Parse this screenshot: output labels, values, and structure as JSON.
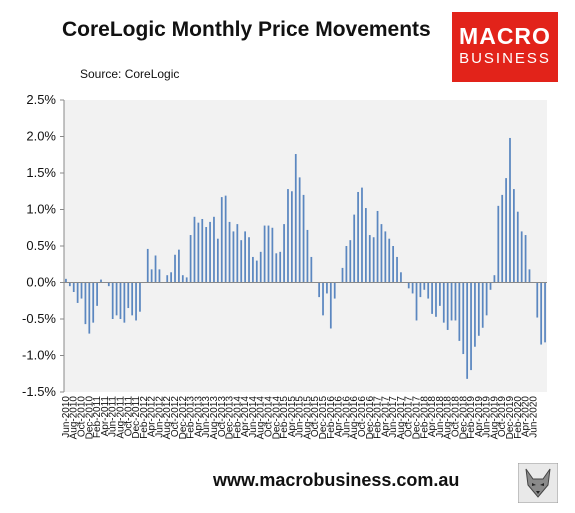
{
  "header": {
    "title": "CoreLogic Monthly Price Movements",
    "source": "Source: CoreLogic"
  },
  "logo": {
    "line1": "MACRO",
    "line2": "BUSINESS",
    "color": "#e2231a"
  },
  "footer": {
    "url": "www.macrobusiness.com.au"
  },
  "colors": {
    "bar": "#5b87c0",
    "plot_bg": "#f2f2f2"
  },
  "chart_data": {
    "type": "bar",
    "title": "CoreLogic Monthly Price Movements",
    "xlabel": "",
    "ylabel": "",
    "ylim": [
      -1.5,
      2.5
    ],
    "yticks": [
      "-1.5%",
      "-1.0%",
      "-0.5%",
      "0.0%",
      "0.5%",
      "1.0%",
      "1.5%",
      "2.0%",
      "2.5%"
    ],
    "ytick_values": [
      -1.5,
      -1.0,
      -0.5,
      0.0,
      0.5,
      1.0,
      1.5,
      2.0,
      2.5
    ],
    "grid": false,
    "xtick_labels": [
      "Jun-2010",
      "Aug-2010",
      "Oct-2010",
      "Dec-2010",
      "Feb-2011",
      "Apr-2011",
      "Jun-2011",
      "Aug-2011",
      "Oct-2011",
      "Dec-2011",
      "Feb-2012",
      "Apr-2012",
      "Jun-2012",
      "Aug-2012",
      "Oct-2012",
      "Dec-2012",
      "Feb-2013",
      "Apr-2013",
      "Jun-2013",
      "Aug-2013",
      "Oct-2013",
      "Dec-2013",
      "Feb-2014",
      "Apr-2014",
      "Jun-2014",
      "Aug-2014",
      "Oct-2014",
      "Dec-2014",
      "Feb-2015",
      "Apr-2015",
      "Jun-2015",
      "Aug-2015",
      "Oct-2015",
      "Dec-2015",
      "Feb-2016",
      "Apr-2016",
      "Jun-2016",
      "Aug-2016",
      "Oct-2016",
      "Dec-2016",
      "Feb-2017",
      "Apr-2017",
      "Jun-2017",
      "Aug-2017",
      "Oct-2017",
      "Dec-2017",
      "Feb-2018",
      "Apr-2018",
      "Jun-2018",
      "Aug-2018",
      "Oct-2018",
      "Dec-2018",
      "Feb-2019",
      "Apr-2019",
      "Jun-2019",
      "Aug-2019",
      "Oct-2019",
      "Dec-2019",
      "Feb-2020",
      "Apr-2020",
      "Jun-2020"
    ],
    "values": [
      0.05,
      -0.05,
      -0.13,
      -0.28,
      -0.22,
      -0.57,
      -0.7,
      -0.55,
      -0.32,
      0.04,
      0.0,
      -0.05,
      -0.5,
      -0.45,
      -0.5,
      -0.55,
      -0.35,
      -0.45,
      -0.52,
      -0.4,
      0.0,
      0.46,
      0.18,
      0.37,
      0.18,
      0.0,
      0.1,
      0.14,
      0.38,
      0.45,
      0.1,
      0.07,
      0.65,
      0.9,
      0.82,
      0.87,
      0.76,
      0.83,
      0.9,
      0.6,
      1.17,
      1.19,
      0.83,
      0.7,
      0.8,
      0.58,
      0.7,
      0.62,
      0.35,
      0.3,
      0.42,
      0.78,
      0.78,
      0.75,
      0.4,
      0.42,
      0.8,
      1.28,
      1.25,
      1.76,
      1.44,
      1.2,
      0.72,
      0.35,
      0.0,
      -0.2,
      -0.45,
      -0.15,
      -0.63,
      -0.22,
      0.0,
      0.2,
      0.5,
      0.58,
      0.93,
      1.24,
      1.3,
      1.02,
      0.65,
      0.62,
      0.98,
      0.8,
      0.7,
      0.6,
      0.5,
      0.35,
      0.14,
      0.0,
      -0.08,
      -0.15,
      -0.52,
      -0.2,
      -0.1,
      -0.22,
      -0.43,
      -0.47,
      -0.32,
      -0.55,
      -0.65,
      -0.52,
      -0.52,
      -0.8,
      -0.98,
      -1.32,
      -1.2,
      -0.88,
      -0.73,
      -0.62,
      -0.45,
      -0.1,
      0.1,
      1.05,
      1.2,
      1.43,
      1.98,
      1.28,
      0.97,
      0.7,
      0.65,
      0.18,
      0.0,
      -0.48,
      -0.85,
      -0.82
    ]
  }
}
